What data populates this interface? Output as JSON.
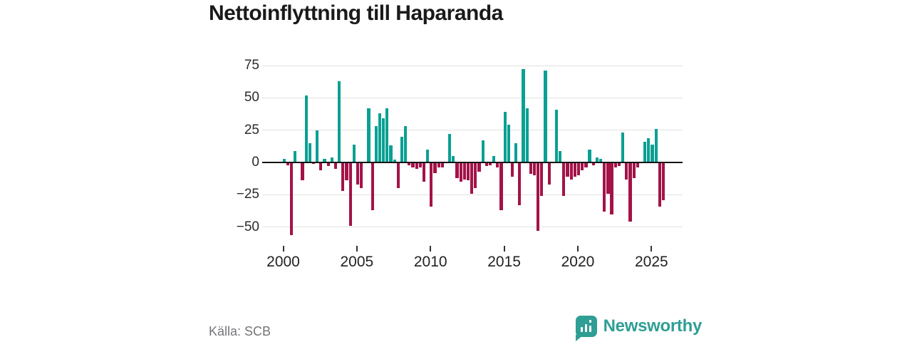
{
  "header": {
    "title": "Nettoinflyttning till Haparanda"
  },
  "footer": {
    "source": "Källa: SCB",
    "brand": "Newsworthy"
  },
  "colors": {
    "positive": "#0aa093",
    "negative": "#a31348",
    "grid": "#e1e1e1",
    "zero_axis": "#151515",
    "brand_teal": "#2f9e95",
    "text_dark": "#1a1a1a",
    "text_muted": "#75757a"
  },
  "chart_data": {
    "type": "bar",
    "title": "Nettoinflyttning till Haparanda",
    "x_unit": "quarter",
    "start": "2000Q1",
    "end": "2025Q4",
    "ylabel": "",
    "xlabel": "",
    "ylim": [
      -62,
      82
    ],
    "y_ticks": [
      75,
      50,
      25,
      0,
      -25,
      -50
    ],
    "x_tick_labels": [
      "2000",
      "2005",
      "2010",
      "2015",
      "2020",
      "2025"
    ],
    "grid": "horizontal",
    "legend": "none",
    "series_by_year": [
      {
        "year": 2000,
        "values": [
          3,
          -2,
          -56,
          9
        ]
      },
      {
        "year": 2001,
        "values": [
          0,
          -14,
          52,
          15
        ]
      },
      {
        "year": 2002,
        "values": [
          -1,
          25,
          -6,
          3
        ]
      },
      {
        "year": 2003,
        "values": [
          -3,
          4,
          -5,
          63
        ]
      },
      {
        "year": 2004,
        "values": [
          -22,
          -14,
          -49,
          14
        ]
      },
      {
        "year": 2005,
        "values": [
          -17,
          -20,
          0,
          42
        ]
      },
      {
        "year": 2006,
        "values": [
          -37,
          28,
          38,
          34
        ]
      },
      {
        "year": 2007,
        "values": [
          42,
          13,
          2,
          -20
        ]
      },
      {
        "year": 2008,
        "values": [
          20,
          28,
          -2,
          -4
        ]
      },
      {
        "year": 2009,
        "values": [
          -5,
          -4,
          -15,
          10
        ]
      },
      {
        "year": 2010,
        "values": [
          -34,
          -8,
          -4,
          -4
        ]
      },
      {
        "year": 2011,
        "values": [
          0,
          22,
          5,
          -12
        ]
      },
      {
        "year": 2012,
        "values": [
          -15,
          -13,
          -14,
          -24
        ]
      },
      {
        "year": 2013,
        "values": [
          -20,
          -7,
          17,
          -3
        ]
      },
      {
        "year": 2014,
        "values": [
          -2,
          5,
          -4,
          -37
        ]
      },
      {
        "year": 2015,
        "values": [
          39,
          29,
          -11,
          15
        ]
      },
      {
        "year": 2016,
        "values": [
          -33,
          72,
          42,
          -9
        ]
      },
      {
        "year": 2017,
        "values": [
          -10,
          -53,
          -26,
          71
        ]
      },
      {
        "year": 2018,
        "values": [
          -17,
          0,
          41,
          9
        ]
      },
      {
        "year": 2019,
        "values": [
          -26,
          -11,
          -13,
          -11
        ]
      },
      {
        "year": 2020,
        "values": [
          -10,
          -6,
          -4,
          10
        ]
      },
      {
        "year": 2021,
        "values": [
          -2,
          4,
          3,
          -38
        ]
      },
      {
        "year": 2022,
        "values": [
          -24,
          -40,
          -4,
          -3
        ]
      },
      {
        "year": 2023,
        "values": [
          23,
          -13,
          -46,
          -12
        ]
      },
      {
        "year": 2024,
        "values": [
          -4,
          0,
          16,
          19
        ]
      },
      {
        "year": 2025,
        "values": [
          14,
          26,
          -34,
          -29
        ]
      }
    ]
  }
}
